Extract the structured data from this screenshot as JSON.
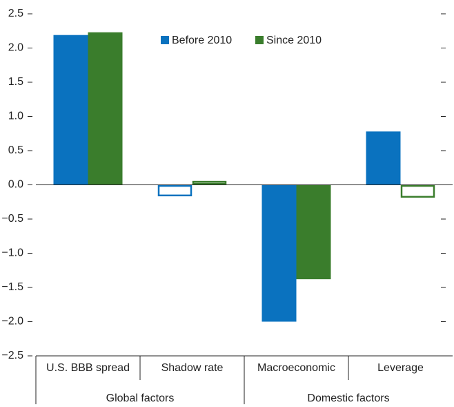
{
  "chart_data": {
    "type": "bar",
    "categories": [
      "U.S. BBB spread",
      "Shadow rate",
      "Macroeconomic",
      "Leverage"
    ],
    "groups": [
      "Global factors",
      "Domestic factors"
    ],
    "series": [
      {
        "name": "Before 2010",
        "color": "#0a72bf",
        "values": [
          2.19,
          -0.17,
          -2.0,
          0.78
        ],
        "outlined": [
          false,
          true,
          false,
          false
        ]
      },
      {
        "name": "Since 2010",
        "color": "#3a7d2c",
        "values": [
          2.23,
          0.06,
          -1.38,
          -0.19
        ],
        "outlined": [
          false,
          true,
          false,
          true
        ]
      }
    ],
    "ylim": [
      -2.5,
      2.5
    ],
    "yticks": [
      2.5,
      {
        "value": 2.0,
        "label": "2.0"
      },
      1.5,
      {
        "value": 1.0,
        "label": "1.0"
      },
      0.5,
      {
        "value": 0.0,
        "label": "0.0"
      },
      {
        "value": -0.5,
        "label": "−0.5"
      },
      {
        "value": -1.0,
        "label": "−1.0"
      },
      {
        "value": -1.5,
        "label": "−1.5"
      },
      {
        "value": -2.0,
        "label": "−2.0"
      },
      {
        "value": -2.5,
        "label": "−2.5"
      }
    ],
    "legend": "top"
  }
}
